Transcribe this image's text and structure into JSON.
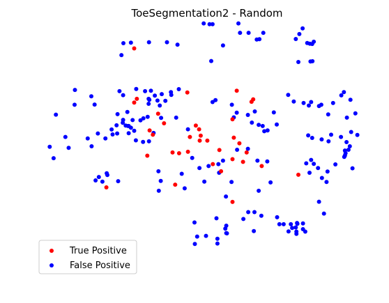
{
  "chart_data": {
    "type": "scatter",
    "title": "ToeSegmentation2 - Random",
    "xlabel": "",
    "ylabel": "",
    "axes_visible": false,
    "grid": false,
    "legend_position": "lower-left",
    "xlim": [
      0,
      1000
    ],
    "ylim": [
      0,
      1000
    ],
    "series": [
      {
        "name": "True Positive",
        "color": "#ff0000",
        "points": [
          [
            282,
            917
          ],
          [
            290,
            713
          ],
          [
            444,
            739
          ],
          [
            595,
            746
          ],
          [
            640,
            701
          ],
          [
            645,
            711
          ],
          [
            282,
            698
          ],
          [
            355,
            653
          ],
          [
            470,
            605
          ],
          [
            373,
            614
          ],
          [
            582,
            630
          ],
          [
            329,
            585
          ],
          [
            339,
            568
          ],
          [
            480,
            590
          ],
          [
            485,
            564
          ],
          [
            452,
            559
          ],
          [
            482,
            544
          ],
          [
            586,
            556
          ],
          [
            603,
            533
          ],
          [
            625,
            496
          ],
          [
            446,
            499
          ],
          [
            322,
            483
          ],
          [
            399,
            496
          ],
          [
            419,
            493
          ],
          [
            505,
            544
          ],
          [
            542,
            506
          ],
          [
            582,
            469
          ],
          [
            614,
            458
          ],
          [
            671,
            441
          ],
          [
            522,
            449
          ],
          [
            547,
            420
          ],
          [
            783,
            406
          ],
          [
            197,
            355
          ],
          [
            407,
            366
          ],
          [
            582,
            296
          ]
        ]
      },
      {
        "name": "False Positive",
        "color": "#0000ff",
        "points": [
          [
            494,
            1018
          ],
          [
            512,
            1015
          ],
          [
            521,
            1015
          ],
          [
            600,
            1018
          ],
          [
            631,
            980
          ],
          [
            676,
            980
          ],
          [
            664,
            954
          ],
          [
            656,
            953
          ],
          [
            605,
            980
          ],
          [
            553,
            929
          ],
          [
            414,
            932
          ],
          [
            272,
            940
          ],
          [
            249,
            938
          ],
          [
            327,
            942
          ],
          [
            382,
            942
          ],
          [
            775,
            955
          ],
          [
            786,
            975
          ],
          [
            796,
            998
          ],
          [
            810,
            939
          ],
          [
            825,
            935
          ],
          [
            830,
            944
          ],
          [
            818,
            936
          ],
          [
            820,
            864
          ],
          [
            826,
            865
          ],
          [
            783,
            862
          ],
          [
            517,
            866
          ],
          [
            243,
            890
          ],
          [
            101,
            749
          ],
          [
            151,
            723
          ],
          [
            161,
            690
          ],
          [
            100,
            689
          ],
          [
            43,
            649
          ],
          [
            72,
            559
          ],
          [
            82,
            515
          ],
          [
            24,
            519
          ],
          [
            36,
            473
          ],
          [
            152,
            521
          ],
          [
            140,
            553
          ],
          [
            171,
            573
          ],
          [
            194,
            553
          ],
          [
            216,
            569
          ],
          [
            213,
            589
          ],
          [
            228,
            606
          ],
          [
            248,
            628
          ],
          [
            256,
            605
          ],
          [
            277,
            627
          ],
          [
            263,
            603
          ],
          [
            247,
            616
          ],
          [
            230,
            573
          ],
          [
            282,
            584
          ],
          [
            272,
            596
          ],
          [
            301,
            626
          ],
          [
            310,
            634
          ],
          [
            323,
            640
          ],
          [
            360,
            686
          ],
          [
            377,
            705
          ],
          [
            395,
            729
          ],
          [
            394,
            740
          ],
          [
            418,
            752
          ],
          [
            366,
            732
          ],
          [
            353,
            706
          ],
          [
            326,
            713
          ],
          [
            328,
            709
          ],
          [
            345,
            726
          ],
          [
            326,
            693
          ],
          [
            248,
            728
          ],
          [
            237,
            744
          ],
          [
            288,
            753
          ],
          [
            315,
            744
          ],
          [
            333,
            746
          ],
          [
            261,
            660
          ],
          [
            231,
            651
          ],
          [
            265,
            603
          ],
          [
            265,
            574
          ],
          [
            287,
            545
          ],
          [
            309,
            539
          ],
          [
            327,
            541
          ],
          [
            341,
            575
          ],
          [
            364,
            636
          ],
          [
            410,
            637
          ],
          [
            446,
            590
          ],
          [
            521,
            700
          ],
          [
            530,
            708
          ],
          [
            580,
            689
          ],
          [
            586,
            638
          ],
          [
            595,
            657
          ],
          [
            629,
            648
          ],
          [
            650,
            662
          ],
          [
            674,
            603
          ],
          [
            641,
            617
          ],
          [
            662,
            608
          ],
          [
            679,
            582
          ],
          [
            689,
            585
          ],
          [
            708,
            658
          ],
          [
            717,
            609
          ],
          [
            752,
            729
          ],
          [
            769,
            702
          ],
          [
            799,
            696
          ],
          [
            815,
            686
          ],
          [
            822,
            700
          ],
          [
            853,
            689
          ],
          [
            846,
            684
          ],
          [
            874,
            650
          ],
          [
            889,
            696
          ],
          [
            914,
            727
          ],
          [
            922,
            740
          ],
          [
            942,
            709
          ],
          [
            957,
            654
          ],
          [
            931,
            637
          ],
          [
            963,
            567
          ],
          [
            940,
            521
          ],
          [
            936,
            507
          ],
          [
            913,
            559
          ],
          [
            944,
            579
          ],
          [
            930,
            538
          ],
          [
            883,
            568
          ],
          [
            875,
            541
          ],
          [
            854,
            549
          ],
          [
            825,
            555
          ],
          [
            822,
            466
          ],
          [
            807,
            452
          ],
          [
            830,
            450
          ],
          [
            843,
            433
          ],
          [
            817,
            414
          ],
          [
            872,
            419
          ],
          [
            855,
            393
          ],
          [
            869,
            377
          ],
          [
            896,
            448
          ],
          [
            927,
            493
          ],
          [
            925,
            484
          ],
          [
            948,
            432
          ],
          [
            923,
            478
          ],
          [
            925,
            504
          ],
          [
            813,
            565
          ],
          [
            629,
            511
          ],
          [
            596,
            507
          ],
          [
            658,
            463
          ],
          [
            688,
            460
          ],
          [
            553,
            463
          ],
          [
            509,
            441
          ],
          [
            539,
            449
          ],
          [
            541,
            414
          ],
          [
            481,
            433
          ],
          [
            459,
            474
          ],
          [
            427,
            410
          ],
          [
            356,
            420
          ],
          [
            363,
            381
          ],
          [
            496,
            378
          ],
          [
            579,
            377
          ],
          [
            562,
            318
          ],
          [
            662,
            341
          ],
          [
            698,
            375
          ],
          [
            630,
            255
          ],
          [
            649,
            255
          ],
          [
            670,
            240
          ],
          [
            718,
            234
          ],
          [
            738,
            206
          ],
          [
            725,
            206
          ],
          [
            760,
            206
          ],
          [
            764,
            191
          ],
          [
            753,
            177
          ],
          [
            777,
            167
          ],
          [
            775,
            193
          ],
          [
            780,
            208
          ],
          [
            797,
            209
          ],
          [
            797,
            186
          ],
          [
            779,
            211
          ],
          [
            804,
            176
          ],
          [
            777,
            176
          ],
          [
            861,
            249
          ],
          [
            846,
            297
          ],
          [
            200,
            405
          ],
          [
            198,
            412
          ],
          [
            174,
            397
          ],
          [
            164,
            383
          ],
          [
            185,
            378
          ],
          [
            233,
            380
          ],
          [
            357,
            341
          ],
          [
            436,
            351
          ],
          [
            533,
            230
          ],
          [
            501,
            159
          ],
          [
            536,
            128
          ],
          [
            467,
            126
          ],
          [
            466,
            213
          ],
          [
            474,
            156
          ],
          [
            560,
            188
          ],
          [
            536,
            147
          ],
          [
            563,
            170
          ],
          [
            563,
            200
          ],
          [
            565,
            169
          ],
          [
            615,
            227
          ],
          [
            647,
            178
          ]
        ]
      }
    ],
    "legend": {
      "entries": [
        "True Positive",
        "False Positive"
      ]
    }
  }
}
